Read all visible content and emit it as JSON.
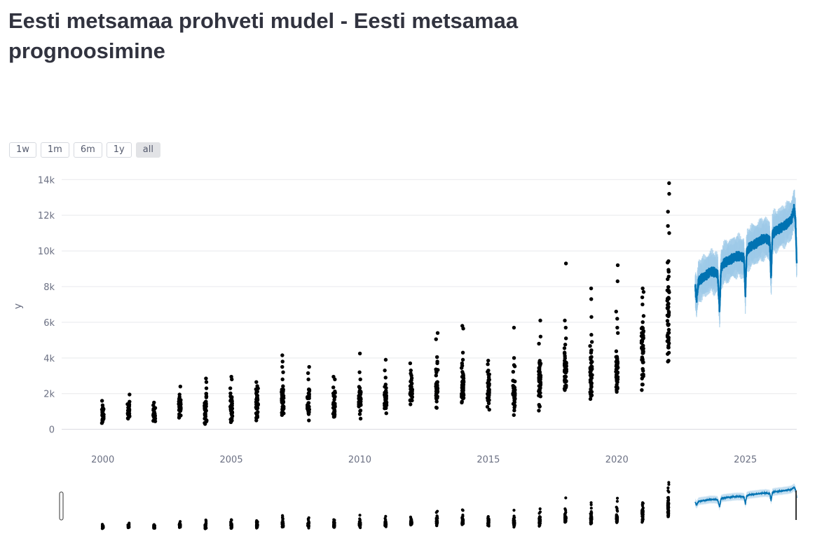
{
  "page": {
    "title": "Eesti metsamaa prohveti mudel - Eesti metsamaa prognoosimine"
  },
  "range_selector": {
    "buttons": [
      {
        "label": "1w",
        "active": false
      },
      {
        "label": "1m",
        "active": false
      },
      {
        "label": "6m",
        "active": false
      },
      {
        "label": "1y",
        "active": false
      },
      {
        "label": "all",
        "active": true
      }
    ]
  },
  "colors": {
    "observed": "#000000",
    "forecast": "#0072b2",
    "band": "#9ecae8",
    "grid": "#e8e9ec",
    "tick": "#6b7083"
  },
  "chart_data": {
    "type": "scatter",
    "title": "",
    "xlabel": "",
    "ylabel": "y",
    "xlim": [
      1998.4,
      2027.0
    ],
    "ylim": [
      -800,
      14600
    ],
    "x_ticks": [
      2000,
      2005,
      2010,
      2015,
      2020,
      2025
    ],
    "x_tick_labels": [
      "2000",
      "2005",
      "2010",
      "2015",
      "2020",
      "2025"
    ],
    "y_ticks": [
      0,
      2000,
      4000,
      6000,
      8000,
      10000,
      12000,
      14000
    ],
    "y_tick_labels": [
      "0",
      "2k",
      "4k",
      "6k",
      "8k",
      "10k",
      "12k",
      "14k"
    ],
    "grid": true,
    "range_slider": true,
    "series": [
      {
        "kind": "observed",
        "years": [
          {
            "x": 2000,
            "ymin": 350,
            "ymax": 1350,
            "n": 28,
            "extra": [
              1600
            ]
          },
          {
            "x": 2001,
            "ymin": 600,
            "ymax": 1550,
            "n": 26,
            "extra": [
              1950
            ]
          },
          {
            "x": 2002,
            "ymin": 450,
            "ymax": 1350,
            "n": 26,
            "extra": [
              1500
            ]
          },
          {
            "x": 2003,
            "ymin": 650,
            "ymax": 1950,
            "n": 28,
            "extra": [
              2400
            ]
          },
          {
            "x": 2004,
            "ymin": 300,
            "ymax": 2300,
            "n": 38,
            "extra": [
              2650,
              2850
            ]
          },
          {
            "x": 2005,
            "ymin": 400,
            "ymax": 2300,
            "n": 36,
            "extra": [
              2800,
              2950
            ]
          },
          {
            "x": 2006,
            "ymin": 500,
            "ymax": 2650,
            "n": 36,
            "extra": []
          },
          {
            "x": 2007,
            "ymin": 800,
            "ymax": 2800,
            "n": 38,
            "extra": [
              3200,
              3500,
              3800,
              4150
            ]
          },
          {
            "x": 2008,
            "ymin": 850,
            "ymax": 2800,
            "n": 34,
            "extra": [
              500,
              3150,
              3500
            ]
          },
          {
            "x": 2009,
            "ymin": 700,
            "ymax": 2350,
            "n": 34,
            "extra": [
              2800,
              2950
            ]
          },
          {
            "x": 2010,
            "ymin": 850,
            "ymax": 2800,
            "n": 36,
            "extra": [
              600,
              3200,
              4250
            ]
          },
          {
            "x": 2011,
            "ymin": 900,
            "ymax": 2900,
            "n": 34,
            "extra": [
              3300,
              3900
            ]
          },
          {
            "x": 2012,
            "ymin": 1400,
            "ymax": 3300,
            "n": 36,
            "extra": [
              3700
            ]
          },
          {
            "x": 2013,
            "ymin": 1200,
            "ymax": 3800,
            "n": 38,
            "extra": [
              4050,
              5050,
              5400
            ]
          },
          {
            "x": 2014,
            "ymin": 1500,
            "ymax": 3700,
            "n": 38,
            "extra": [
              3900,
              4300,
              5650,
              5800
            ]
          },
          {
            "x": 2015,
            "ymin": 1100,
            "ymax": 3650,
            "n": 36,
            "extra": [
              3850
            ]
          },
          {
            "x": 2016,
            "ymin": 800,
            "ymax": 3600,
            "n": 38,
            "extra": [
              4000,
              5700
            ]
          },
          {
            "x": 2017,
            "ymin": 1050,
            "ymax": 4800,
            "n": 40,
            "extra": [
              5200,
              6100
            ]
          },
          {
            "x": 2018,
            "ymin": 2200,
            "ymax": 5100,
            "n": 40,
            "extra": [
              5700,
              6100,
              9300
            ]
          },
          {
            "x": 2019,
            "ymin": 1700,
            "ymax": 4900,
            "n": 42,
            "extra": [
              5300,
              6300,
              7300,
              7900
            ]
          },
          {
            "x": 2020,
            "ymin": 2100,
            "ymax": 5400,
            "n": 42,
            "extra": [
              5700,
              6200,
              6600,
              8300,
              9200
            ]
          },
          {
            "x": 2021,
            "ymin": 2200,
            "ymax": 7000,
            "n": 44,
            "extra": [
              7400,
              7700,
              7900
            ]
          },
          {
            "x": 2022,
            "ymin": 3800,
            "ymax": 11000,
            "n": 50,
            "extra": [
              11400,
              12200,
              13200,
              13800
            ]
          }
        ]
      },
      {
        "kind": "forecast",
        "x_start": 2023.05,
        "x_end": 2027.0,
        "points": [
          [
            2023.05,
            7950
          ],
          [
            2023.1,
            7300
          ],
          [
            2023.18,
            8300
          ],
          [
            2023.25,
            8400
          ],
          [
            2023.45,
            8600
          ],
          [
            2023.65,
            8850
          ],
          [
            2023.82,
            8800
          ],
          [
            2023.92,
            8700
          ],
          [
            2024.0,
            6700
          ],
          [
            2024.05,
            9000
          ],
          [
            2024.15,
            9300
          ],
          [
            2024.4,
            9500
          ],
          [
            2024.65,
            9700
          ],
          [
            2024.8,
            9700
          ],
          [
            2024.95,
            9600
          ],
          [
            2025.0,
            7500
          ],
          [
            2025.05,
            9900
          ],
          [
            2025.15,
            10200
          ],
          [
            2025.4,
            10400
          ],
          [
            2025.65,
            10650
          ],
          [
            2025.8,
            10700
          ],
          [
            2025.95,
            10550
          ],
          [
            2026.0,
            8400
          ],
          [
            2026.05,
            10900
          ],
          [
            2026.15,
            11100
          ],
          [
            2026.4,
            11300
          ],
          [
            2026.65,
            11550
          ],
          [
            2026.8,
            11800
          ],
          [
            2026.9,
            12400
          ],
          [
            2026.95,
            11700
          ],
          [
            2027.0,
            9300
          ]
        ],
        "band_halfwidth": 900
      }
    ]
  }
}
